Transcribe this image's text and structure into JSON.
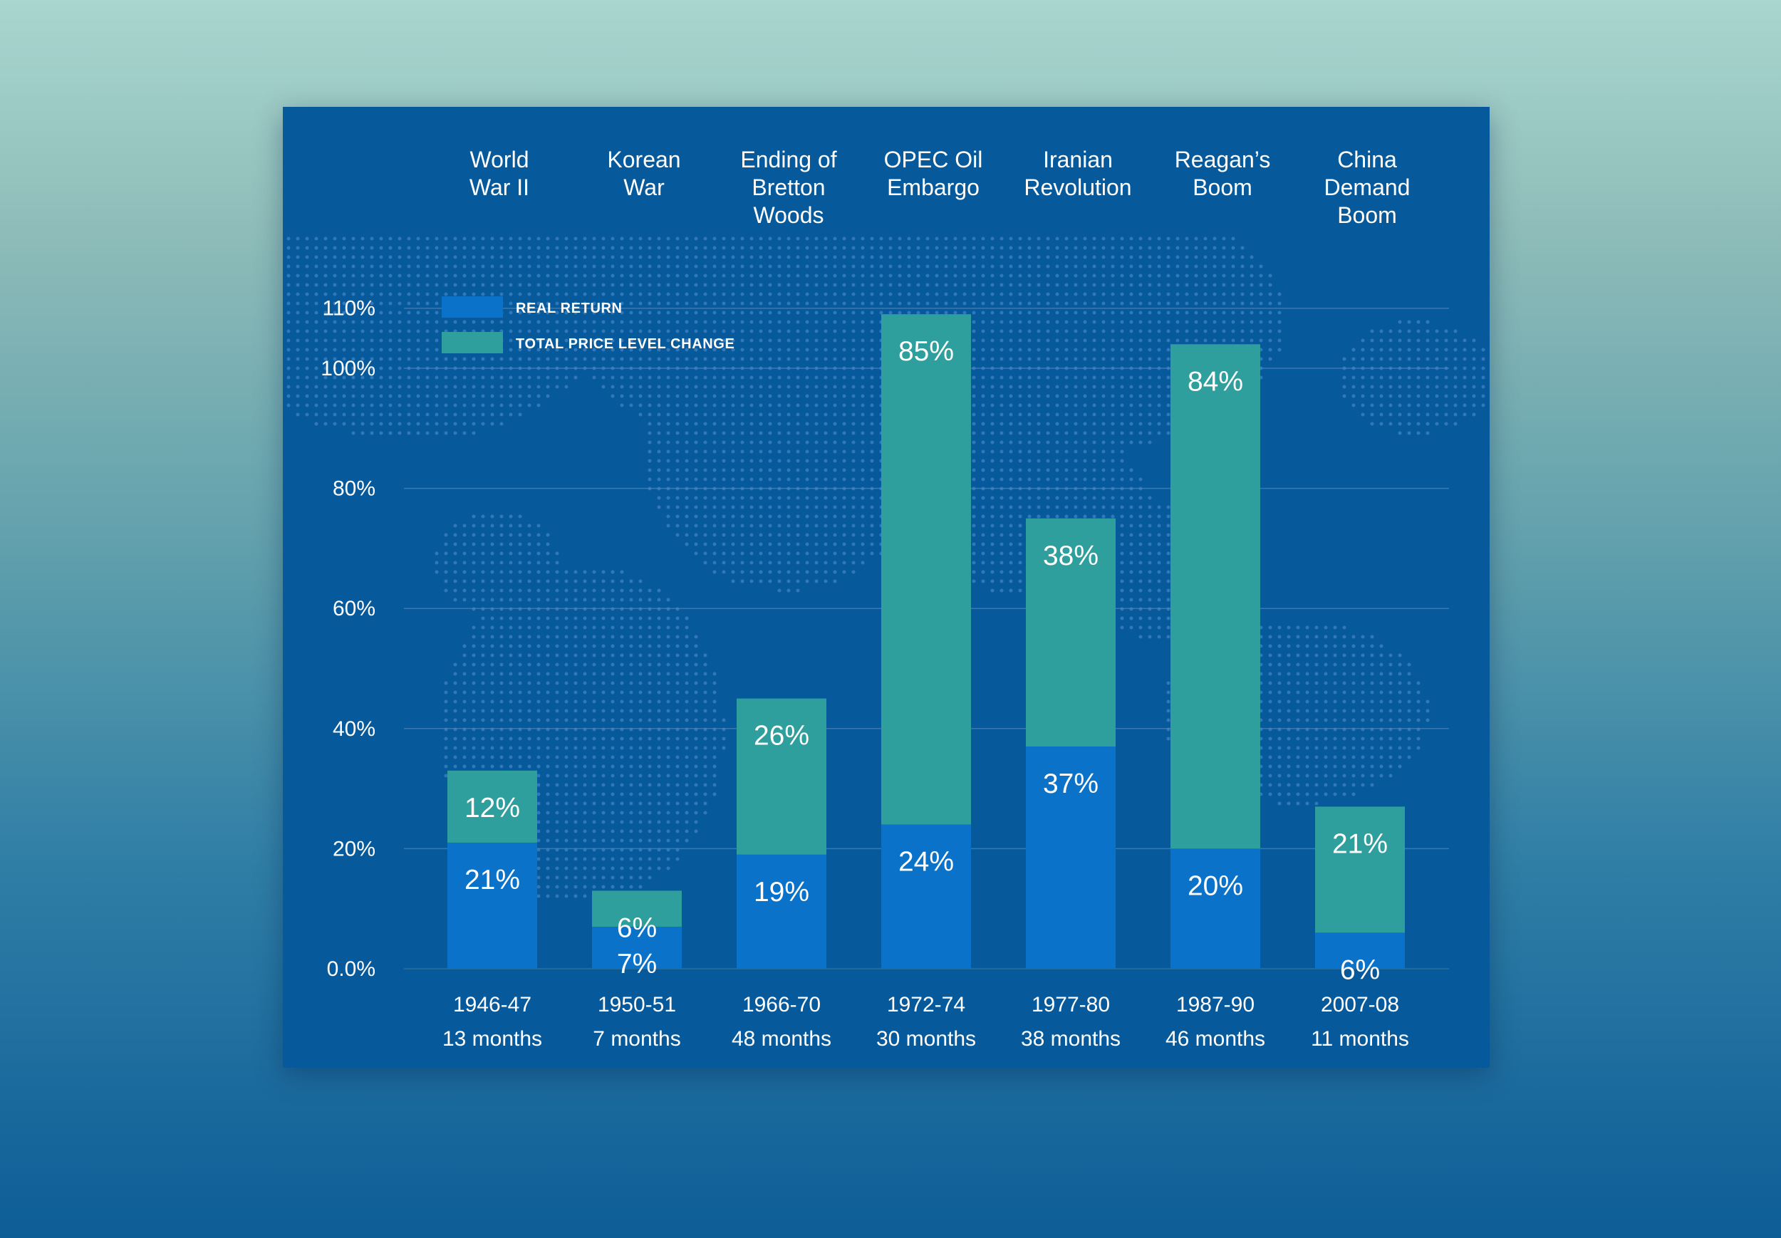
{
  "colors": {
    "background_top": "#a9d6cf",
    "background_bottom": "#0e5d97",
    "card": "#065a9b",
    "real_return": "#0a72c9",
    "price_level_change": "#2e9f9c",
    "map_dots": "#3d7ec0",
    "gridline": "#4f86bb",
    "text": "#ffffff"
  },
  "chart_data": {
    "type": "bar",
    "stacked": true,
    "title": "",
    "xlabel": "",
    "ylabel": "",
    "ylim": [
      0,
      110
    ],
    "yticks": [
      0,
      20,
      40,
      60,
      80,
      100,
      110
    ],
    "ytick_labels": [
      "0.0%",
      "20%",
      "40%",
      "60%",
      "80%",
      "100%",
      "110%"
    ],
    "grid": true,
    "legend_position": "top-left",
    "background": "world map of dots",
    "categories": [
      "World War II",
      "Korean War",
      "Ending of Bretton Woods",
      "OPEC Oil Embargo",
      "Iranian Revolution",
      "Reagan’s Boom",
      "China Demand Boom"
    ],
    "event_label_lines": [
      [
        "World",
        "War II"
      ],
      [
        "Korean",
        "War"
      ],
      [
        "Ending of",
        "Bretton",
        "Woods"
      ],
      [
        "OPEC Oil",
        "Embargo"
      ],
      [
        "Iranian",
        "Revolution"
      ],
      [
        "Reagan’s",
        "Boom"
      ],
      [
        "China",
        "Demand",
        "Boom"
      ]
    ],
    "periods": [
      "1946-47",
      "1950-51",
      "1966-70",
      "1972-74",
      "1977-80",
      "1987-90",
      "2007-08"
    ],
    "durations": [
      "13 months",
      "7 months",
      "48 months",
      "30 months",
      "38 months",
      "46 months",
      "11 months"
    ],
    "series": [
      {
        "name": "REAL RETURN",
        "color": "#0a72c9",
        "values": [
          21,
          7,
          19,
          24,
          37,
          20,
          6
        ],
        "labels": [
          "21%",
          "7%",
          "19%",
          "24%",
          "37%",
          "20%",
          "6%"
        ]
      },
      {
        "name": "TOTAL PRICE LEVEL CHANGE",
        "color": "#2e9f9c",
        "values": [
          12,
          6,
          26,
          85,
          38,
          84,
          21
        ],
        "labels": [
          "12%",
          "6%",
          "26%",
          "85%",
          "38%",
          "84%",
          "21%"
        ]
      }
    ]
  }
}
